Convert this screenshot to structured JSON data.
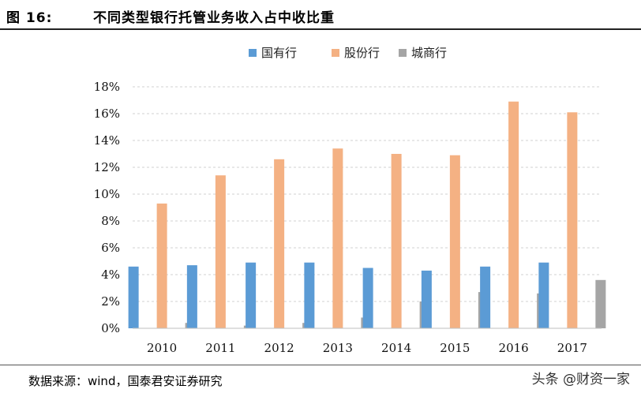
{
  "figure": {
    "label": "图 16:",
    "title": "不同类型银行托管业务收入占中收比重",
    "source": "数据来源：wind，国泰君安证券研究",
    "watermark": "头条 @财资一家"
  },
  "chart_data": {
    "type": "bar",
    "title": "不同类型银行托管业务收入占中收比重",
    "xlabel": "",
    "ylabel": "",
    "categories": [
      "2010",
      "2011",
      "2012",
      "2013",
      "2014",
      "2015",
      "2016",
      "2017"
    ],
    "series": [
      {
        "name": "国有行",
        "color": "#5b9bd5",
        "values": [
          4.6,
          4.7,
          4.9,
          4.9,
          4.5,
          4.3,
          4.6,
          4.9
        ]
      },
      {
        "name": "股份行",
        "color": "#f4b183",
        "values": [
          9.3,
          11.4,
          12.6,
          13.4,
          13.0,
          12.9,
          16.9,
          16.1
        ]
      },
      {
        "name": "城商行",
        "color": "#a5a5a5",
        "values": [
          0.4,
          0.2,
          0.4,
          0.8,
          2.0,
          2.7,
          2.6,
          3.6
        ]
      }
    ],
    "ylim": [
      0,
      18
    ],
    "yticks": [
      "0%",
      "2%",
      "4%",
      "6%",
      "8%",
      "10%",
      "12%",
      "14%",
      "16%",
      "18%"
    ],
    "grid": true,
    "legend_position": "top-center"
  }
}
